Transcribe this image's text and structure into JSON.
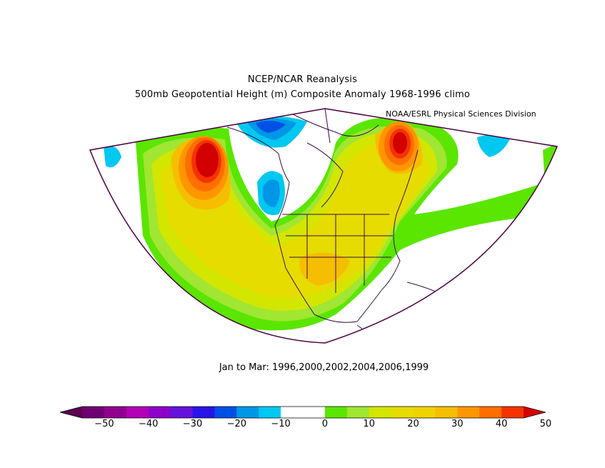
{
  "header": {
    "title": "NCEP/NCAR Reanalysis",
    "subtitle": "500mb Geopotential Height (m) Composite Anomaly 1968-1996 climo",
    "credit": "NOAA/ESRL Physical Sciences Division"
  },
  "period_label": "Jan to Mar: 1996,2000,2002,2004,2006,1999",
  "colorbar": {
    "tick_labels": [
      "-50",
      "-40",
      "-30",
      "-20",
      "-10",
      "0",
      "10",
      "20",
      "30",
      "40",
      "50"
    ],
    "colors": [
      "#6e0070",
      "#91008f",
      "#b400b4",
      "#8c00c8",
      "#6414dc",
      "#2814e6",
      "#0050e6",
      "#0096e6",
      "#00c8f0",
      "#ffffff",
      "#ffffff",
      "#5ae600",
      "#a0e632",
      "#d2e600",
      "#e6dc00",
      "#f0d200",
      "#f5be00",
      "#ff9600",
      "#ff6e00",
      "#f53200"
    ],
    "under_color": "#5a0050",
    "over_color": "#d20000"
  },
  "map": {
    "projection": "polar-stereographic-sector",
    "region": "North America and North Pacific",
    "colors": {
      "outline": "#4b0040",
      "coast": "#3c1040",
      "ocean_base": "#ffffff"
    }
  }
}
